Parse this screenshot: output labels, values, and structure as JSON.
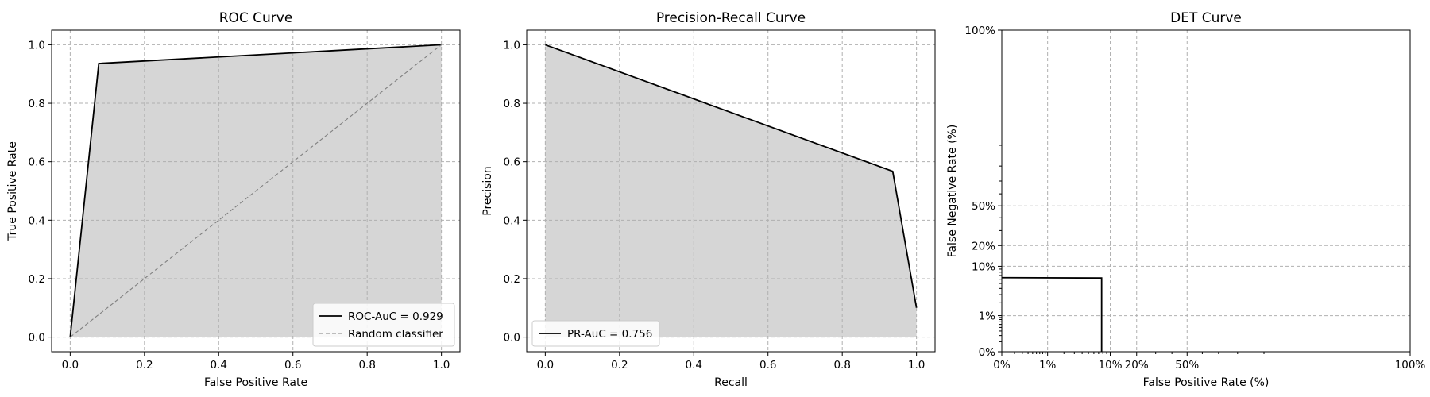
{
  "chart_data": [
    {
      "type": "line",
      "title": "ROC Curve",
      "xlabel": "False Positive Rate",
      "ylabel": "True Positive Rate",
      "xlim": [
        -0.05,
        1.05
      ],
      "ylim": [
        -0.05,
        1.05
      ],
      "xticks": [
        0.0,
        0.2,
        0.4,
        0.6,
        0.8,
        1.0
      ],
      "yticks": [
        0.0,
        0.2,
        0.4,
        0.6,
        0.8,
        1.0
      ],
      "tick_labels_x": [
        "0.0",
        "0.2",
        "0.4",
        "0.6",
        "0.8",
        "1.0"
      ],
      "tick_labels_y": [
        "0.0",
        "0.2",
        "0.4",
        "0.6",
        "0.8",
        "1.0"
      ],
      "grid": true,
      "legend_position": "bottom-right",
      "series": [
        {
          "name": "ROC-AuC = 0.929",
          "style": "solid",
          "color": "#000000",
          "filled": true,
          "x": [
            0.0,
            0.077,
            1.0
          ],
          "y": [
            0.0,
            0.936,
            1.0
          ]
        },
        {
          "name": "Random classifier",
          "style": "dashed",
          "color": "#808080",
          "x": [
            0.0,
            1.0
          ],
          "y": [
            0.0,
            1.0
          ]
        }
      ]
    },
    {
      "type": "line",
      "title": "Precision-Recall Curve",
      "xlabel": "Recall",
      "ylabel": "Precision",
      "xlim": [
        -0.05,
        1.05
      ],
      "ylim": [
        -0.05,
        1.05
      ],
      "xticks": [
        0.0,
        0.2,
        0.4,
        0.6,
        0.8,
        1.0
      ],
      "yticks": [
        0.0,
        0.2,
        0.4,
        0.6,
        0.8,
        1.0
      ],
      "tick_labels_x": [
        "0.0",
        "0.2",
        "0.4",
        "0.6",
        "0.8",
        "1.0"
      ],
      "tick_labels_y": [
        "0.0",
        "0.2",
        "0.4",
        "0.6",
        "0.8",
        "1.0"
      ],
      "grid": true,
      "legend_position": "bottom-left",
      "series": [
        {
          "name": "PR-AuC = 0.756",
          "style": "solid",
          "color": "#000000",
          "filled": true,
          "x": [
            0.0,
            0.936,
            1.0
          ],
          "y": [
            1.0,
            0.567,
            0.1
          ]
        }
      ]
    },
    {
      "type": "line",
      "title": "DET Curve",
      "xlabel": "False Positive Rate (%)",
      "ylabel": "False Negative Rate (%)",
      "scale": "probit",
      "xlim": [
        0.001,
        0.9999
      ],
      "ylim": [
        0.001,
        0.9999
      ],
      "xticks": [
        0.001,
        0.01,
        0.1,
        0.2,
        0.5,
        0.9999
      ],
      "yticks": [
        0.001,
        0.01,
        0.1,
        0.2,
        0.5,
        0.9999
      ],
      "tick_labels_x": [
        "0%",
        "1%",
        "10%",
        "20%",
        "50%",
        "100%"
      ],
      "tick_labels_y": [
        "0%",
        "1%",
        "10%",
        "20%",
        "50%",
        "100%"
      ],
      "grid": true,
      "series": [
        {
          "style": "solid",
          "color": "#000000",
          "x": [
            0.001,
            0.077,
            0.077
          ],
          "y": [
            0.064,
            0.063,
            0.001
          ]
        }
      ]
    }
  ]
}
